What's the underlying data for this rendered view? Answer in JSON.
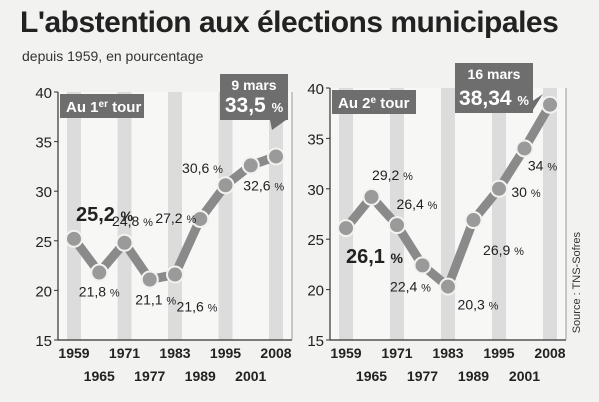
{
  "header": {
    "title": "L'abstention aux élections municipales",
    "subtitle": "depuis 1959, en pourcentage"
  },
  "source": "Source : TNS-Sofres",
  "colors": {
    "line": "#8a8a8a",
    "band": "#dcdcdc",
    "badge": "#6e6e6e",
    "badge_text": "#ffffff"
  },
  "chart_data": [
    {
      "type": "line",
      "title": "Au 1er tour",
      "title_parts": [
        "Au 1",
        "er",
        " tour"
      ],
      "x": [
        "1959",
        "1965",
        "1971",
        "1977",
        "1983",
        "1989",
        "1995",
        "2001",
        "2008"
      ],
      "values": [
        25.2,
        21.8,
        24.8,
        21.1,
        21.6,
        27.2,
        30.6,
        32.6,
        33.5
      ],
      "labels": [
        "25,2 %",
        "21,8 %",
        "24,8 %",
        "21,1 %",
        "21,6 %",
        "27,2 %",
        "30,6 %",
        "32,6 %",
        "33,5 %"
      ],
      "ylim": [
        15,
        40
      ],
      "yticks": [
        "15",
        "20",
        "25",
        "30",
        "35",
        "40"
      ],
      "callout": {
        "date": "9 mars",
        "value": "33,5",
        "unit": "%"
      }
    },
    {
      "type": "line",
      "title": "Au 2e tour",
      "title_parts": [
        "Au 2",
        "e",
        " tour"
      ],
      "x": [
        "1959",
        "1965",
        "1971",
        "1977",
        "1983",
        "1989",
        "1995",
        "2001",
        "2008"
      ],
      "values": [
        26.1,
        29.2,
        26.4,
        22.4,
        20.3,
        26.9,
        30,
        34,
        38.34
      ],
      "labels": [
        "26,1 %",
        "29,2 %",
        "26,4 %",
        "22,4 %",
        "20,3 %",
        "26,9 %",
        "30 %",
        "34 %",
        "38,34 %"
      ],
      "ylim": [
        15,
        40
      ],
      "yticks": [
        "15",
        "20",
        "25",
        "30",
        "35",
        "40"
      ],
      "callout": {
        "date": "16 mars",
        "value": "38,34",
        "unit": "%"
      }
    }
  ]
}
